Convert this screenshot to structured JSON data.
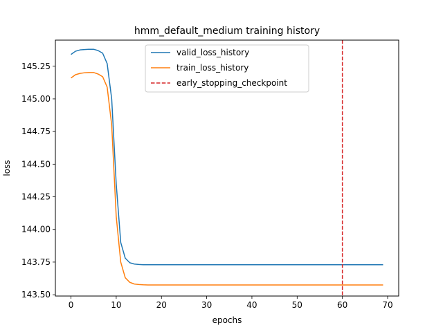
{
  "chart_data": {
    "type": "line",
    "title": "hmm_default_medium training history",
    "xlabel": "epochs",
    "ylabel": "loss",
    "xlim": [
      -3.45,
      72.45
    ],
    "ylim": [
      143.49,
      145.45
    ],
    "xticks": [
      0,
      10,
      20,
      30,
      40,
      50,
      60,
      70
    ],
    "xtick_labels": [
      "0",
      "10",
      "20",
      "30",
      "40",
      "50",
      "60",
      "70"
    ],
    "yticks": [
      143.5,
      143.75,
      144.0,
      144.25,
      144.5,
      144.75,
      145.0,
      145.25
    ],
    "ytick_labels": [
      "143.50",
      "143.75",
      "144.00",
      "144.25",
      "144.50",
      "144.75",
      "145.00",
      "145.25"
    ],
    "grid": false,
    "legend_position": "top-center",
    "series": [
      {
        "name": "valid_loss_history",
        "color": "#1f77b4",
        "style": "solid",
        "x": [
          0,
          1,
          2,
          3,
          4,
          5,
          6,
          7,
          8,
          9,
          10,
          11,
          12,
          13,
          14,
          15,
          16,
          17,
          18,
          19,
          20,
          21,
          22,
          23,
          24,
          25,
          26,
          27,
          28,
          29,
          30,
          31,
          32,
          33,
          34,
          35,
          36,
          37,
          38,
          39,
          40,
          41,
          42,
          43,
          44,
          45,
          46,
          47,
          48,
          49,
          50,
          51,
          52,
          53,
          54,
          55,
          56,
          57,
          58,
          59,
          60,
          61,
          62,
          63,
          64,
          65,
          66,
          67,
          68,
          69
        ],
        "values": [
          145.34,
          145.365,
          145.375,
          145.378,
          145.38,
          145.38,
          145.37,
          145.35,
          145.27,
          145.0,
          144.35,
          143.9,
          143.78,
          143.745,
          143.735,
          143.732,
          143.73,
          143.73,
          143.73,
          143.73,
          143.73,
          143.73,
          143.73,
          143.73,
          143.73,
          143.73,
          143.73,
          143.73,
          143.73,
          143.73,
          143.73,
          143.73,
          143.73,
          143.73,
          143.73,
          143.73,
          143.73,
          143.73,
          143.73,
          143.73,
          143.73,
          143.73,
          143.73,
          143.73,
          143.73,
          143.73,
          143.73,
          143.73,
          143.73,
          143.73,
          143.73,
          143.73,
          143.73,
          143.73,
          143.73,
          143.73,
          143.73,
          143.73,
          143.73,
          143.73,
          143.73,
          143.73,
          143.73,
          143.73,
          143.73,
          143.73,
          143.73,
          143.73,
          143.73,
          143.73
        ]
      },
      {
        "name": "train_loss_history",
        "color": "#ff7f0e",
        "style": "solid",
        "x": [
          0,
          1,
          2,
          3,
          4,
          5,
          6,
          7,
          8,
          9,
          10,
          11,
          12,
          13,
          14,
          15,
          16,
          17,
          18,
          19,
          20,
          21,
          22,
          23,
          24,
          25,
          26,
          27,
          28,
          29,
          30,
          31,
          32,
          33,
          34,
          35,
          36,
          37,
          38,
          39,
          40,
          41,
          42,
          43,
          44,
          45,
          46,
          47,
          48,
          49,
          50,
          51,
          52,
          53,
          54,
          55,
          56,
          57,
          58,
          59,
          60,
          61,
          62,
          63,
          64,
          65,
          66,
          67,
          68,
          69
        ],
        "values": [
          145.16,
          145.185,
          145.195,
          145.2,
          145.202,
          145.202,
          145.19,
          145.17,
          145.09,
          144.8,
          144.1,
          143.75,
          143.63,
          143.595,
          143.582,
          143.578,
          143.576,
          143.575,
          143.575,
          143.575,
          143.575,
          143.575,
          143.575,
          143.575,
          143.575,
          143.575,
          143.575,
          143.575,
          143.575,
          143.575,
          143.575,
          143.575,
          143.575,
          143.575,
          143.575,
          143.575,
          143.575,
          143.575,
          143.575,
          143.575,
          143.575,
          143.575,
          143.575,
          143.575,
          143.575,
          143.575,
          143.575,
          143.575,
          143.575,
          143.575,
          143.575,
          143.575,
          143.575,
          143.575,
          143.575,
          143.575,
          143.575,
          143.575,
          143.575,
          143.575,
          143.575,
          143.575,
          143.575,
          143.575,
          143.575,
          143.575,
          143.575,
          143.575,
          143.575,
          143.575
        ]
      }
    ],
    "vlines": [
      {
        "name": "early_stopping_checkpoint",
        "x": 60,
        "color": "#d62728",
        "style": "dashed"
      }
    ]
  }
}
